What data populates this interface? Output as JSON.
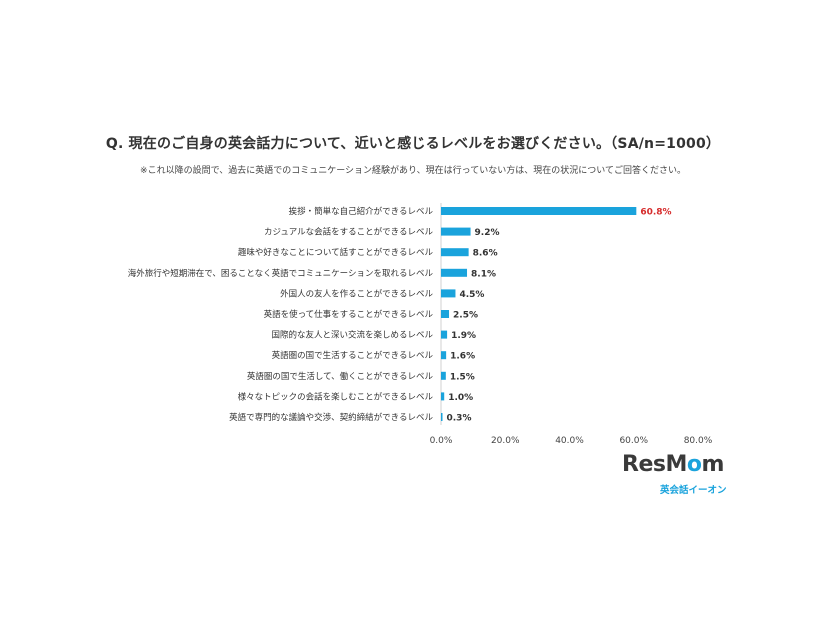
{
  "title": "Q. 現在のご自身の英会話力について、近いと感じるレベルをお選びください。（SA/n=1000）",
  "note": "※これ以降の設問で、過去に英語でのコミュニケーション経験があり、現在は行っていない方は、現在の状況についてご回答ください。",
  "logo": {
    "main_a": "ResM",
    "main_b": "o",
    "main_c": "m",
    "sub": "英会話イーオン"
  },
  "colors": {
    "bar": "#1aa3dc",
    "highlight": "#d62b2b"
  },
  "chart_data": {
    "type": "bar",
    "orientation": "horizontal",
    "categories": [
      "挨拶・簡単な自己紹介ができるレベル",
      "カジュアルな会話をすることができるレベル",
      "趣味や好きなことについて話すことができるレベル",
      "海外旅行や短期滞在で、困ることなく英語でコミュニケーションを取れるレベル",
      "外国人の友人を作ることができるレベル",
      "英語を使って仕事をすることができるレベル",
      "国際的な友人と深い交流を楽しめるレベル",
      "英語圏の国で生活することができるレベル",
      "英語圏の国で生活して、働くことができるレベル",
      "様々なトピックの会話を楽しむことができるレベル",
      "英語で専門的な議論や交渉、契約締結ができるレベル"
    ],
    "values": [
      60.8,
      9.2,
      8.6,
      8.1,
      4.5,
      2.5,
      1.9,
      1.6,
      1.5,
      1.0,
      0.3
    ],
    "value_labels": [
      "60.8%",
      "9.2%",
      "8.6%",
      "8.1%",
      "4.5%",
      "2.5%",
      "1.9%",
      "1.6%",
      "1.5%",
      "1.0%",
      "0.3%"
    ],
    "highlight_index": 0,
    "xlim": [
      0,
      80
    ],
    "xticks": [
      "0.0%",
      "20.0%",
      "40.0%",
      "60.0%",
      "80.0%"
    ],
    "grid": false
  }
}
